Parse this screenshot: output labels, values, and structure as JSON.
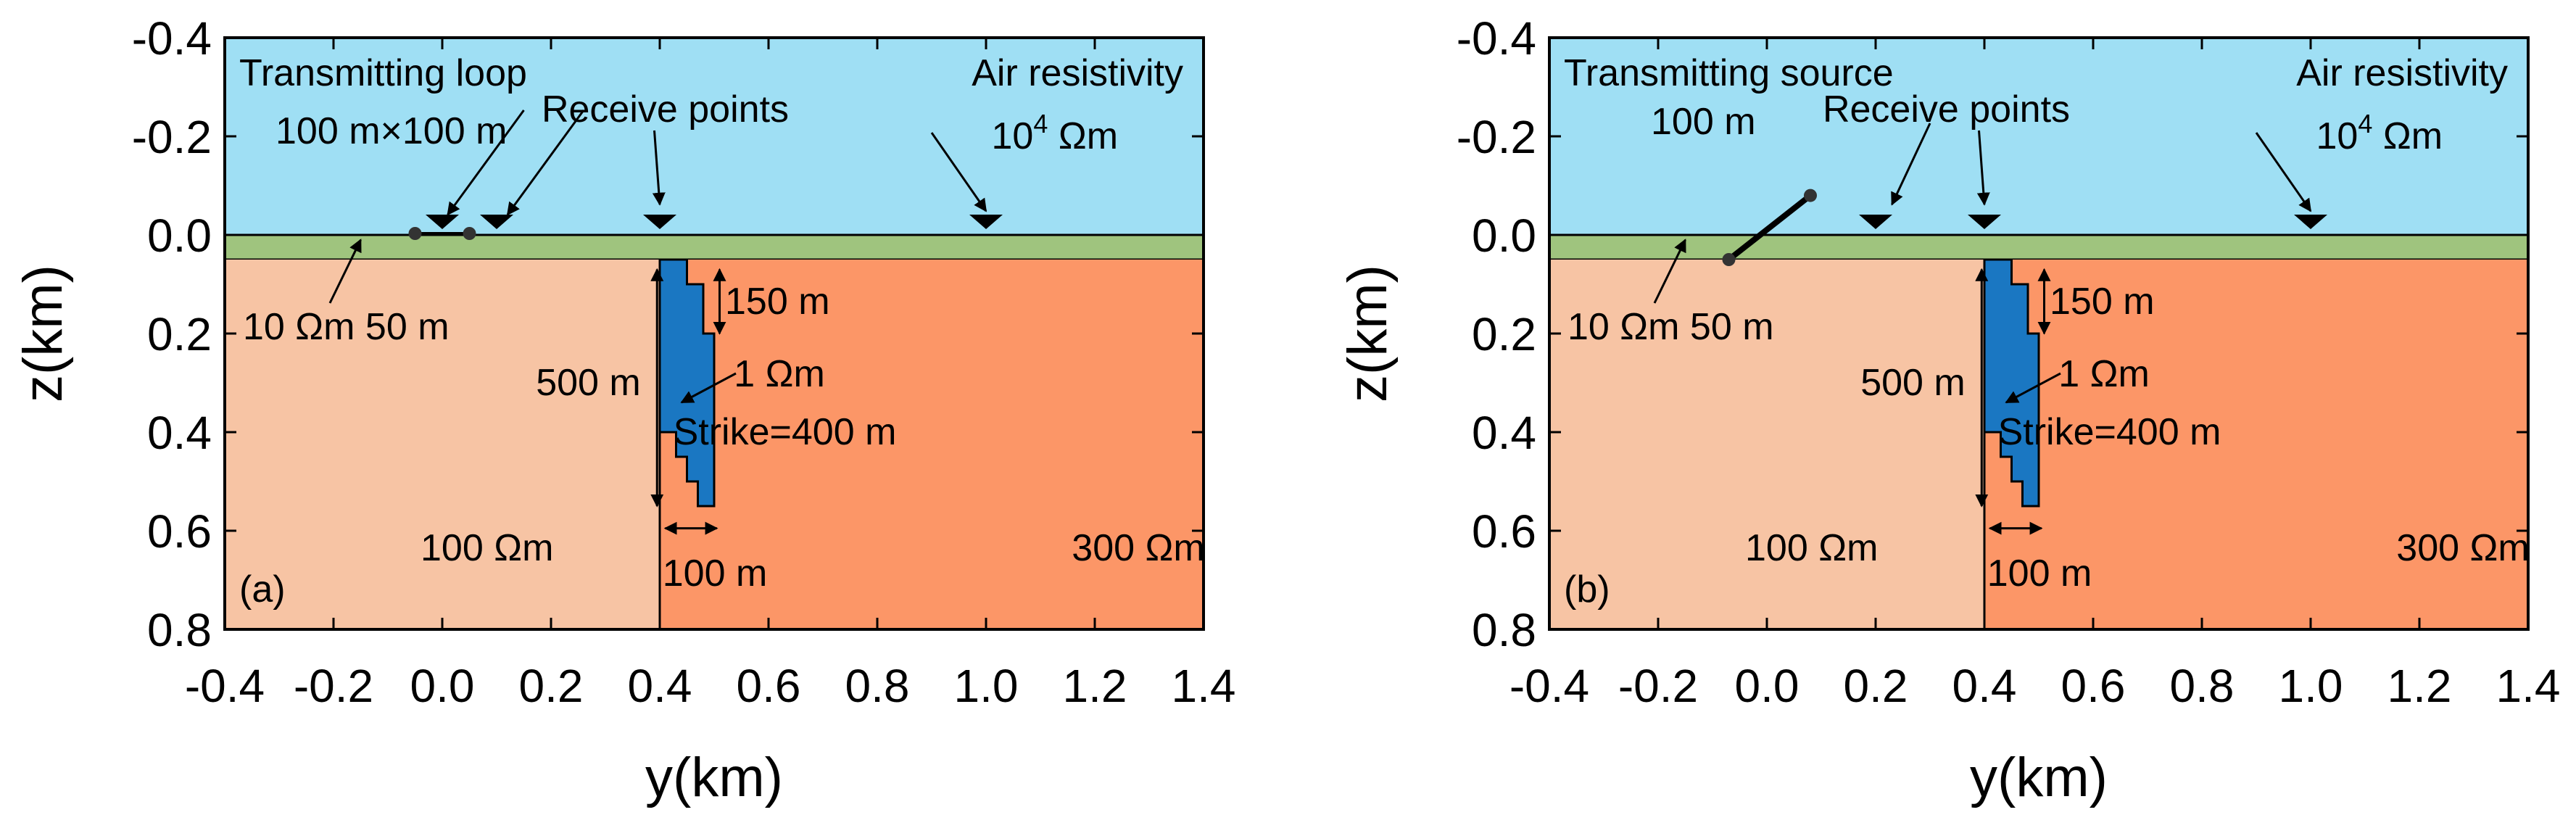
{
  "axes": {
    "x_label": "y(km)",
    "y_label": "z(km)",
    "x_ticks": [
      "-0.4",
      "-0.2",
      "0.0",
      "0.2",
      "0.4",
      "0.6",
      "0.8",
      "1.0",
      "1.2",
      "1.4"
    ],
    "y_ticks": [
      "-0.4",
      "-0.2",
      "0.0",
      "0.2",
      "0.4",
      "0.6",
      "0.8"
    ],
    "x_range_km": [
      -0.4,
      1.4
    ],
    "z_range_km": [
      -0.4,
      0.8
    ]
  },
  "colors": {
    "air": "#9fdff4",
    "overburden": "#9fc47e",
    "host_left": "#f7c4a4",
    "host_right": "#fc9667",
    "target": "#1a77c2"
  },
  "model": {
    "overburden_thickness_km": 0.05,
    "contact_y_km": 0.4,
    "target_steps_km": [
      [
        0.4,
        0.05
      ],
      [
        0.45,
        0.05
      ],
      [
        0.45,
        0.1
      ],
      [
        0.48,
        0.1
      ],
      [
        0.48,
        0.2
      ],
      [
        0.5,
        0.2
      ],
      [
        0.5,
        0.55
      ],
      [
        0.47,
        0.55
      ],
      [
        0.47,
        0.5
      ],
      [
        0.45,
        0.5
      ],
      [
        0.45,
        0.45
      ],
      [
        0.43,
        0.45
      ],
      [
        0.43,
        0.4
      ],
      [
        0.4,
        0.4
      ]
    ]
  },
  "panel_a": {
    "label": "(a)",
    "source_title": "Transmitting loop",
    "source_size": "100 m×100 m",
    "receivers_label": "Receive points",
    "air_title": "Air resistivity",
    "air_value": "10",
    "air_exp": "4",
    "air_unit": " Ωm",
    "overburden_label": "10 Ωm 50 m",
    "host_left_label": "100 Ωm",
    "host_right_label": "300 Ωm",
    "target_label": "1 Ωm",
    "strike_label": "Strike=400 m",
    "depth_top_label": "150 m",
    "depth_extent_label": "500 m",
    "width_label": "100 m",
    "receiver_y_km": [
      0.0,
      0.1,
      0.4,
      1.0
    ]
  },
  "panel_b": {
    "label": "(b)",
    "source_title": "Transmitting source",
    "source_size": "100 m",
    "receivers_label": "Receive points",
    "air_title": "Air resistivity",
    "air_value": "10",
    "air_exp": "4",
    "air_unit": " Ωm",
    "overburden_label": "10 Ωm 50 m",
    "host_left_label": "100 Ωm",
    "host_right_label": "300 Ωm",
    "target_label": "1 Ωm",
    "strike_label": "Strike=400 m",
    "depth_top_label": "150 m",
    "depth_extent_label": "500 m",
    "width_label": "100 m",
    "receiver_y_km": [
      0.2,
      0.4,
      1.0
    ]
  }
}
